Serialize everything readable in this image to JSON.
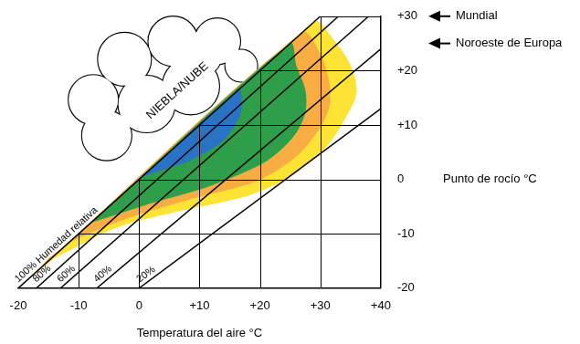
{
  "chart_data": {
    "type": "line",
    "x_label": "Temperatura del aire °C",
    "y_label": "Punto de rocío °C",
    "xlim": [
      -20,
      40
    ],
    "xticks": [
      -20,
      -10,
      0,
      {
        "value": 10,
        "label": "+10"
      },
      {
        "value": 20,
        "label": "+20"
      },
      {
        "value": 30,
        "label": "+30"
      },
      {
        "value": 40,
        "label": "+40"
      }
    ],
    "ylim": [
      -20,
      30
    ],
    "yticks": [
      -20,
      -10,
      0,
      {
        "value": 10,
        "label": "+10"
      },
      {
        "value": 20,
        "label": "+20"
      },
      {
        "value": 30,
        "label": "+30"
      }
    ],
    "grid": true,
    "series": [
      {
        "name": "100% Humedad relativa",
        "color": "#000000",
        "x": [
          -20,
          30
        ],
        "values": [
          -20,
          30
        ]
      },
      {
        "name": "80%",
        "color": "#000000",
        "x": [
          -17,
          33
        ],
        "values": [
          -20,
          30
        ]
      },
      {
        "name": "60%",
        "color": "#000000",
        "x": [
          -13,
          38
        ],
        "values": [
          -20,
          30
        ]
      },
      {
        "name": "40%",
        "color": "#000000",
        "x": [
          -7,
          40
        ],
        "values": [
          -20,
          24
        ]
      },
      {
        "name": "20%",
        "color": "#000000",
        "x": [
          0,
          40
        ],
        "values": [
          -20,
          13
        ]
      }
    ],
    "zones": [
      {
        "color": "#fde333",
        "x": [
          -18,
          29,
          32,
          35,
          36,
          34,
          31,
          25,
          18,
          6,
          -4,
          -14
        ],
        "values": [
          -18,
          29,
          26,
          21,
          16,
          11,
          6,
          0.5,
          -3,
          -6,
          -9,
          -14.5
        ]
      },
      {
        "color": "#f7ad42",
        "x": [
          -17,
          27,
          30,
          31.5,
          31.5,
          30,
          26,
          19.5,
          9,
          -1,
          -11,
          -15
        ],
        "values": [
          -17,
          27,
          23,
          17.7,
          13.4,
          9.6,
          4.2,
          -0.3,
          -3.5,
          -6.8,
          -11.3,
          -14.5
        ]
      },
      {
        "color": "#2e9e4a",
        "x": [
          -8,
          25,
          26,
          27.5,
          27.5,
          25.5,
          21,
          12,
          2
        ],
        "values": [
          -8,
          25,
          21,
          16.5,
          12.2,
          7.8,
          3.3,
          -1.1,
          -4.4
        ]
      },
      {
        "color": "#2a72c4",
        "x": [
          0.5,
          16.5,
          17,
          16.6,
          13.7,
          7.8
        ],
        "values": [
          0.5,
          16.5,
          14.5,
          11.5,
          6.9,
          3.1
        ]
      }
    ],
    "annotations": [
      {
        "text": "NIEBLA/NUBE"
      },
      {
        "text": "Mundial",
        "y": 30
      },
      {
        "text": "Noroeste de Europa",
        "y": 25
      }
    ]
  }
}
